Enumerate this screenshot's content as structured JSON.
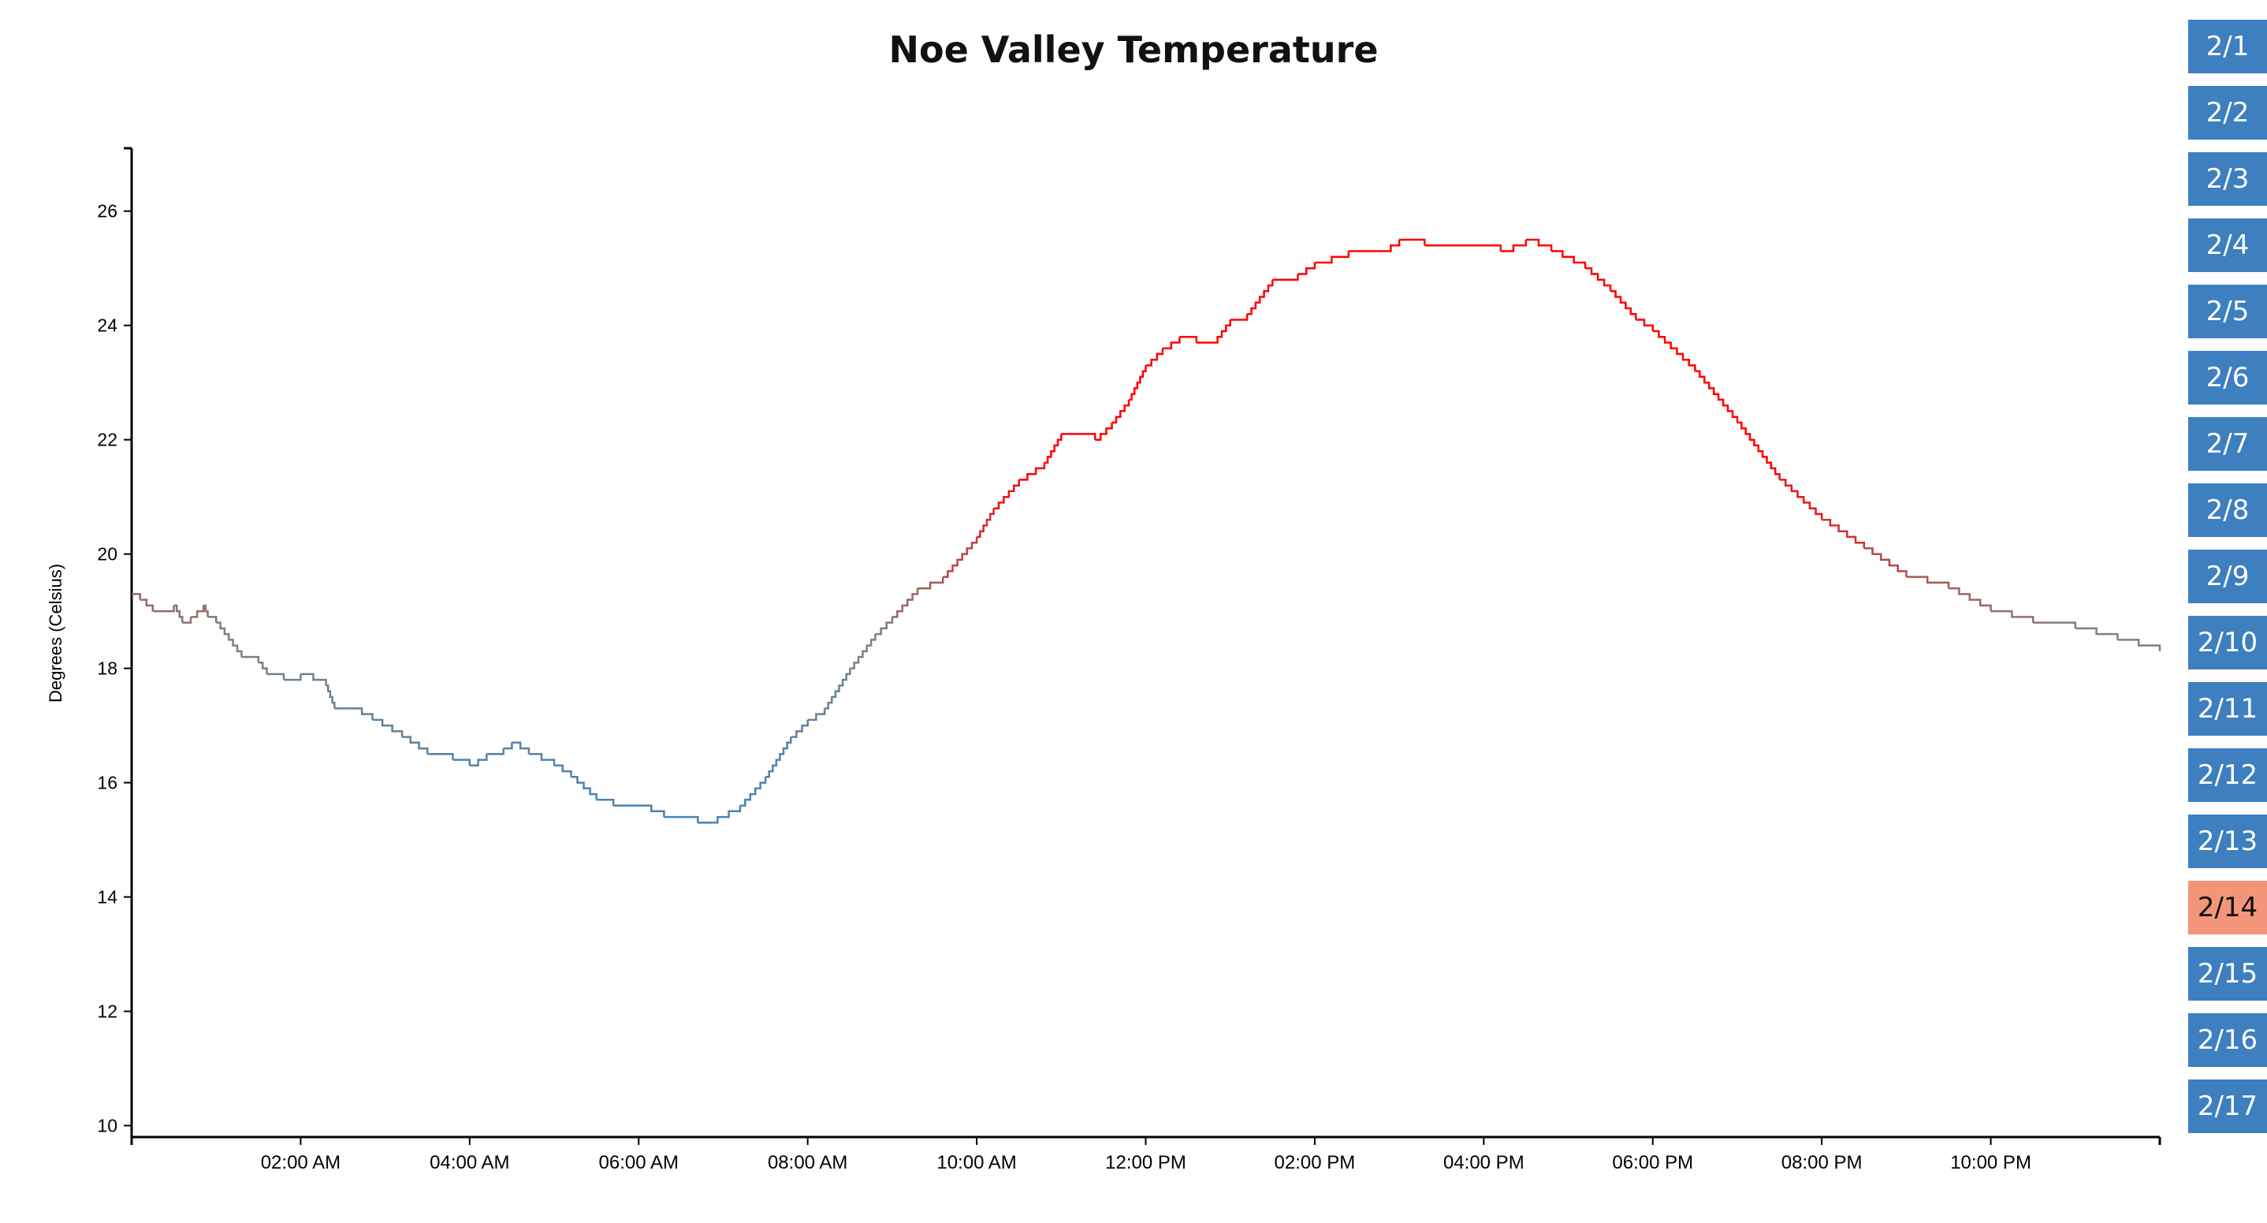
{
  "chart_data": {
    "type": "line",
    "title": "Noe Valley Temperature",
    "xlabel": "",
    "ylabel": "Degrees (Celsius)",
    "xlim": [
      0,
      24
    ],
    "ylim": [
      9.8,
      27.1
    ],
    "yticks": [
      10,
      12,
      14,
      16,
      18,
      20,
      22,
      24,
      26
    ],
    "xticks": [
      {
        "hour": 2,
        "label": "02:00 AM"
      },
      {
        "hour": 4,
        "label": "04:00 AM"
      },
      {
        "hour": 6,
        "label": "06:00 AM"
      },
      {
        "hour": 8,
        "label": "08:00 AM"
      },
      {
        "hour": 10,
        "label": "10:00 AM"
      },
      {
        "hour": 12,
        "label": "12:00 PM"
      },
      {
        "hour": 14,
        "label": "02:00 PM"
      },
      {
        "hour": 16,
        "label": "04:00 PM"
      },
      {
        "hour": 18,
        "label": "06:00 PM"
      },
      {
        "hour": 20,
        "label": "08:00 PM"
      },
      {
        "hour": 22,
        "label": "10:00 PM"
      }
    ],
    "color_scale": {
      "low": "#4682b4",
      "mid": "#808080",
      "high": "#ff0000",
      "low_value": 15.5,
      "mid_value": 18.6,
      "high_value": 21.5
    },
    "series": [
      {
        "x": [
          0,
          0.1,
          0.25,
          0.5,
          0.6,
          0.7,
          0.85,
          0.9,
          1.0,
          1.3,
          1.5,
          1.6,
          1.8,
          2.0,
          2.3,
          2.4,
          2.6,
          2.85,
          3.2,
          3.5,
          3.8,
          4.0,
          4.2,
          4.4,
          4.5,
          4.7,
          5.0,
          5.2,
          5.5,
          5.7,
          6.0,
          6.3,
          6.7,
          6.8,
          7.2,
          7.5,
          7.8,
          8.0,
          8.2,
          8.5,
          8.8,
          9.0,
          9.3,
          9.6,
          10.0,
          10.2,
          10.5,
          10.8,
          11.0,
          11.2,
          11.4,
          11.6,
          11.8,
          12.0,
          12.2,
          12.4,
          12.6,
          12.8,
          13.0,
          13.2,
          13.5,
          13.8,
          14.0,
          14.4,
          14.8,
          15.0,
          15.3,
          15.6,
          16.0,
          16.2,
          16.5,
          16.8,
          17.2,
          17.5,
          17.8,
          18.0,
          18.5,
          19.0,
          19.5,
          20.0,
          20.5,
          21.0,
          21.5,
          22.0,
          22.5,
          23.0,
          23.5,
          24.0
        ],
        "y": [
          19.3,
          19.2,
          19.0,
          19.1,
          18.8,
          18.9,
          19.1,
          18.9,
          18.8,
          18.2,
          18.1,
          17.9,
          17.8,
          17.9,
          17.7,
          17.3,
          17.3,
          17.1,
          16.8,
          16.5,
          16.4,
          16.3,
          16.5,
          16.6,
          16.7,
          16.5,
          16.3,
          16.1,
          15.7,
          15.6,
          15.6,
          15.4,
          15.3,
          15.3,
          15.6,
          16.1,
          16.8,
          17.1,
          17.3,
          18.0,
          18.6,
          18.9,
          19.4,
          19.6,
          20.3,
          20.8,
          21.3,
          21.6,
          22.1,
          22.1,
          22.0,
          22.3,
          22.7,
          23.3,
          23.6,
          23.8,
          23.7,
          23.7,
          24.1,
          24.2,
          24.8,
          24.9,
          25.1,
          25.3,
          25.3,
          25.5,
          25.4,
          25.4,
          25.4,
          25.3,
          25.5,
          25.3,
          25.0,
          24.6,
          24.1,
          23.9,
          23.2,
          22.3,
          21.3,
          20.6,
          20.1,
          19.6,
          19.4,
          19.0,
          18.8,
          18.7,
          18.5,
          18.3
        ]
      }
    ]
  },
  "date_buttons": {
    "items": [
      "2/1",
      "2/2",
      "2/3",
      "2/4",
      "2/5",
      "2/6",
      "2/7",
      "2/8",
      "2/9",
      "2/10",
      "2/11",
      "2/12",
      "2/13",
      "2/14",
      "2/15",
      "2/16",
      "2/17"
    ],
    "selected": "2/14",
    "color": "#3d7fbf",
    "selected_color": "#f4957a",
    "text_color": "#ffffff",
    "selected_text_color": "#111111"
  }
}
